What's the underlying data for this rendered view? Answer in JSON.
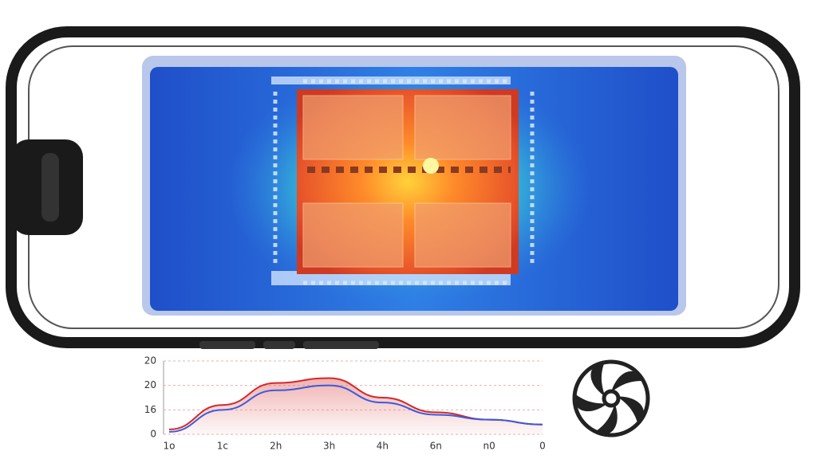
{
  "chart_data": {
    "type": "line",
    "categories": [
      "1o",
      "1c",
      "2h",
      "3h",
      "4h",
      "6n",
      "n0",
      "0"
    ],
    "series": [
      {
        "name": null,
        "color": "#d62728",
        "values": [
          2,
          12,
          21,
          23,
          15,
          9,
          6,
          4
        ]
      },
      {
        "name": null,
        "color": "#3b5bdb",
        "values": [
          1,
          10,
          18,
          20,
          13,
          8,
          6,
          4
        ]
      }
    ],
    "ylim": [
      0,
      30
    ],
    "yticks": [
      0,
      {
        "value": 10,
        "label": "16"
      },
      20,
      {
        "value": 30,
        "label": "20"
      }
    ],
    "grid": true
  }
}
